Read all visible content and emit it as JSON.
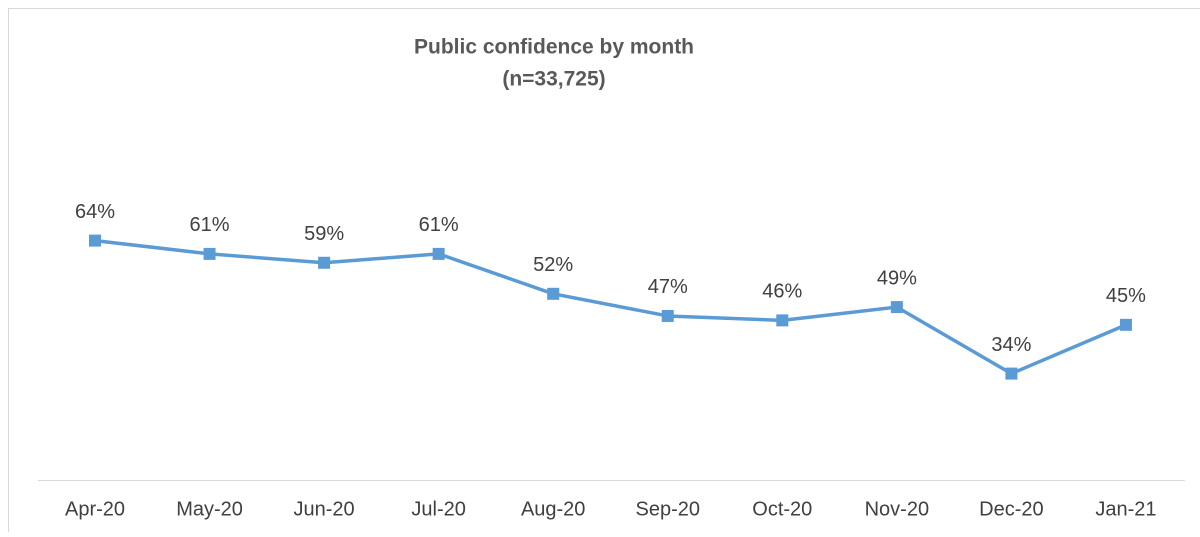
{
  "chart_data": {
    "type": "line",
    "title": "Public confidence by month",
    "subtitle": "(n=33,725)",
    "categories": [
      "Apr-20",
      "May-20",
      "Jun-20",
      "Jul-20",
      "Aug-20",
      "Sep-20",
      "Oct-20",
      "Nov-20",
      "Dec-20",
      "Jan-21"
    ],
    "series": [
      {
        "color": "#5b9bd5",
        "values": [
          64,
          61,
          59,
          61,
          52,
          47,
          46,
          49,
          34,
          45
        ],
        "value_labels": [
          "64%",
          "61%",
          "59%",
          "61%",
          "52%",
          "47%",
          "46%",
          "49%",
          "34%",
          "45%"
        ]
      }
    ],
    "ylim": [
      10,
      70
    ]
  }
}
